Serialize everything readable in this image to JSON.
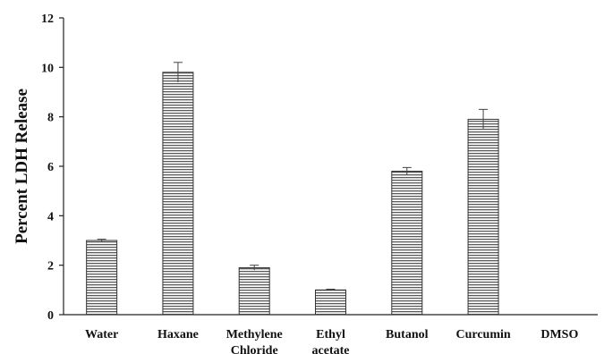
{
  "chart_data": {
    "type": "bar",
    "title": "",
    "xlabel": "",
    "ylabel": "Percent LDH Release",
    "ylim": [
      0,
      12
    ],
    "yticks": [
      0,
      2,
      4,
      6,
      8,
      10,
      12
    ],
    "grid": false,
    "legend": "none",
    "categories": [
      [
        "Water"
      ],
      [
        "Haxane"
      ],
      [
        "Methylene",
        "Chloride"
      ],
      [
        "Ethyl",
        "acetate"
      ],
      [
        "Butanol"
      ],
      [
        "Curcumin"
      ],
      [
        "DMSO"
      ]
    ],
    "values": [
      3.0,
      9.8,
      1.9,
      1.0,
      5.8,
      7.9,
      0
    ],
    "errors": [
      0.05,
      0.4,
      0.1,
      0.03,
      0.15,
      0.4,
      0
    ],
    "bar_fill": "stripes",
    "colors": {
      "bar_stroke": "#333333",
      "stripe": "#5a5a5a",
      "axis": "#222222"
    }
  }
}
